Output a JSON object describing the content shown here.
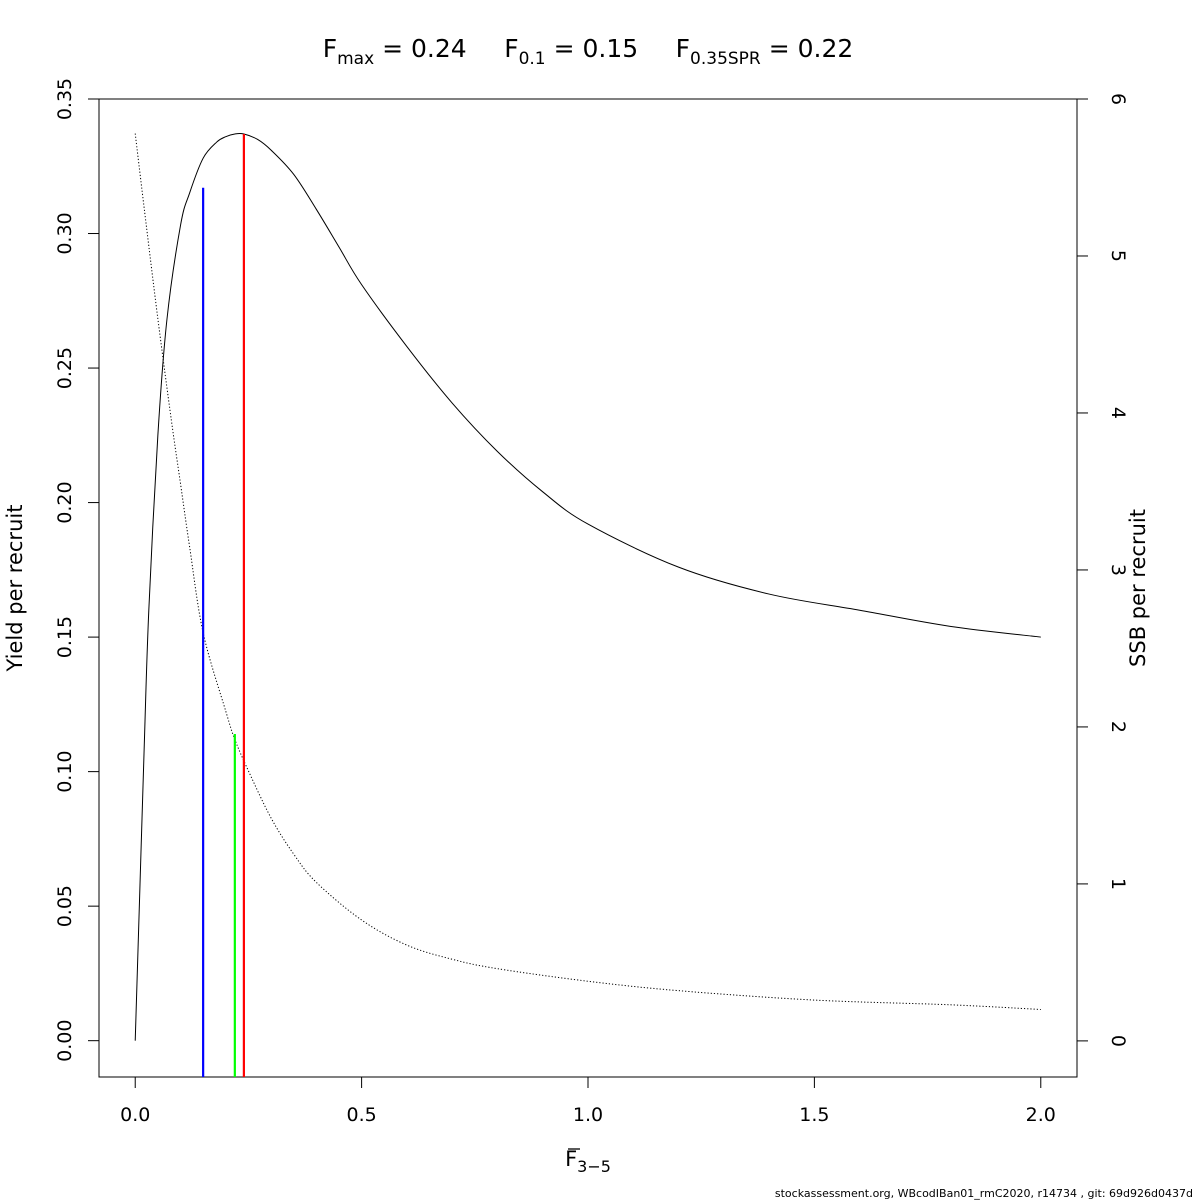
{
  "chart_data": {
    "type": "line",
    "title": {
      "parts": [
        {
          "main": "F",
          "sub": "max",
          "rest": " = 0.24"
        },
        {
          "main": "F",
          "sub": "0.1",
          "rest": " = 0.15"
        },
        {
          "main": "F",
          "sub": "0.35SPR",
          "rest": " = 0.22"
        }
      ]
    },
    "xlabel": {
      "main": "F",
      "sub": "3−5",
      "overline": true
    },
    "ylabel_left": "Yield per recruit",
    "ylabel_right": "SSB per recruit",
    "x_ticks": [
      "0.0",
      "0.5",
      "1.0",
      "1.5",
      "2.0"
    ],
    "y_left_ticks": [
      "0.00",
      "0.05",
      "0.10",
      "0.15",
      "0.20",
      "0.25",
      "0.30",
      "0.35"
    ],
    "y_right_ticks": [
      "0",
      "1",
      "2",
      "3",
      "4",
      "5",
      "6"
    ],
    "xlim": [
      -0.08,
      2.08
    ],
    "ylim_left": [
      -0.0135,
      0.35
    ],
    "ylim_right": [
      -0.23,
      6
    ],
    "grid": false,
    "legend": "none",
    "series": [
      {
        "axis": "left",
        "style": "solid",
        "color": "#000000",
        "x": [
          0,
          0.01,
          0.02,
          0.03,
          0.05,
          0.07,
          0.1,
          0.12,
          0.15,
          0.18,
          0.2,
          0.22,
          0.24,
          0.27,
          0.3,
          0.35,
          0.4,
          0.45,
          0.5,
          0.6,
          0.7,
          0.8,
          0.9,
          1.0,
          1.2,
          1.4,
          1.6,
          1.8,
          2.0
        ],
        "values": [
          0,
          0.055,
          0.11,
          0.16,
          0.225,
          0.268,
          0.303,
          0.315,
          0.328,
          0.334,
          0.336,
          0.337,
          0.337,
          0.335,
          0.331,
          0.322,
          0.309,
          0.295,
          0.281,
          0.258,
          0.237,
          0.219,
          0.204,
          0.192,
          0.176,
          0.166,
          0.16,
          0.154,
          0.15
        ]
      },
      {
        "axis": "right",
        "style": "dotted",
        "color": "#000000",
        "x": [
          0,
          0.02,
          0.05,
          0.08,
          0.1,
          0.12,
          0.15,
          0.2,
          0.22,
          0.25,
          0.3,
          0.35,
          0.4,
          0.5,
          0.6,
          0.7,
          0.8,
          1.0,
          1.2,
          1.5,
          1.8,
          2.0
        ],
        "values": [
          5.78,
          5.3,
          4.6,
          3.95,
          3.55,
          3.15,
          2.6,
          2.1,
          1.92,
          1.72,
          1.42,
          1.19,
          1.01,
          0.77,
          0.61,
          0.52,
          0.46,
          0.38,
          0.32,
          0.26,
          0.23,
          0.2
        ]
      }
    ],
    "reference_lines": [
      {
        "x": 0.15,
        "y": 0.317,
        "color": "#0000ff"
      },
      {
        "x": 0.22,
        "y": 0.114,
        "color": "#00ff00"
      },
      {
        "x": 0.24,
        "y": 0.337,
        "color": "#ff0000"
      }
    ]
  },
  "footer": "stockassessment.org, WBcodIBan01_rmC2020, r14734 , git: 69d926d0437d"
}
